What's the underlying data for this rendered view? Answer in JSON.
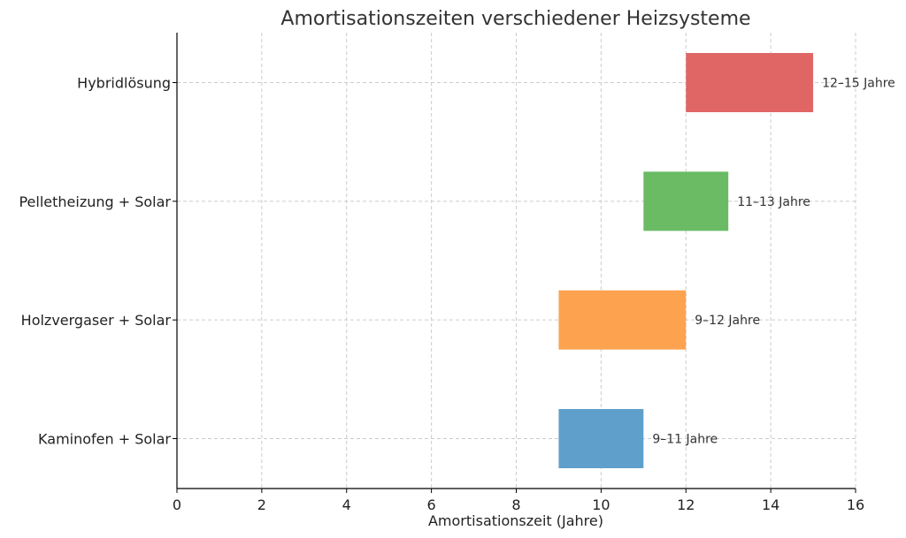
{
  "chart_data": {
    "type": "bar",
    "orientation": "horizontal-range",
    "title": "Amortisationszeiten verschiedener Heizsysteme",
    "xlabel": "Amortisationszeit (Jahre)",
    "ylabel": "",
    "xlim": [
      0,
      16
    ],
    "xticks": [
      "0",
      "2",
      "4",
      "6",
      "8",
      "10",
      "12",
      "14",
      "16"
    ],
    "grid": true,
    "categories": [
      "Kaminofen + Solar",
      "Holzvergaser + Solar",
      "Pelletheizung + Solar",
      "Hybridlösung"
    ],
    "ranges": [
      [
        9,
        11
      ],
      [
        9,
        12
      ],
      [
        11,
        13
      ],
      [
        12,
        15
      ]
    ],
    "labels": [
      "9–11 Jahre",
      "9–12 Jahre",
      "11–13 Jahre",
      "12–15 Jahre"
    ],
    "colors": [
      "#5f9fcb",
      "#fda350",
      "#6abb64",
      "#e06666"
    ]
  }
}
